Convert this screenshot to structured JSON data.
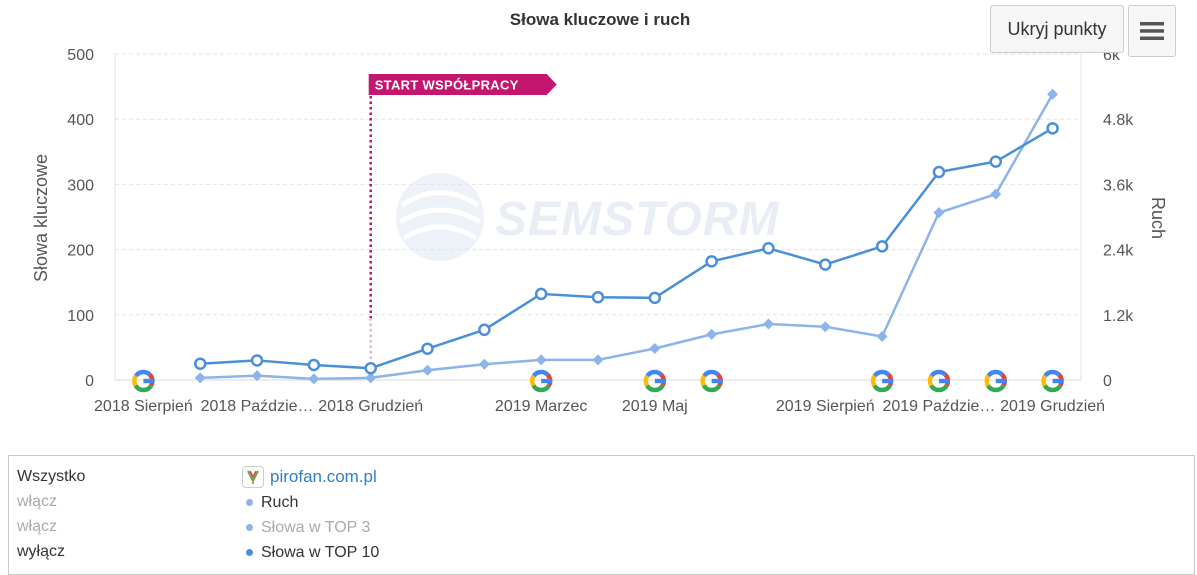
{
  "chart_data": {
    "type": "line",
    "title": "Słowa kluczowe i ruch",
    "ylabel_left": "Słowa kluczowe",
    "ylabel_right": "Ruch",
    "ylim_left": [
      0,
      500
    ],
    "ylim_right": [
      0,
      6000
    ],
    "yticks_left": [
      "0",
      "100",
      "200",
      "300",
      "400",
      "500"
    ],
    "yticks_right": [
      "0",
      "1.2k",
      "2.4k",
      "3.6k",
      "4.8k",
      "6k"
    ],
    "x_labels": [
      {
        "label": "2018 Sierpień",
        "index": 0
      },
      {
        "label": "2018 Paździe…",
        "index": 2
      },
      {
        "label": "2018 Grudzień",
        "index": 4
      },
      {
        "label": "2019 Marzec",
        "index": 7
      },
      {
        "label": "2019 Maj",
        "index": 9
      },
      {
        "label": "2019 Sierpień",
        "index": 12
      },
      {
        "label": "2019 Paździe…",
        "index": 14
      },
      {
        "label": "2019 Grudzień",
        "index": 16
      }
    ],
    "num_points": 17,
    "series": [
      {
        "name": "Słowa w TOP 10",
        "axis": "left",
        "color": "#4a8fd8",
        "marker": "circle",
        "values": [
          null,
          25,
          30,
          23,
          18,
          48,
          77,
          132,
          127,
          126,
          182,
          202,
          177,
          205,
          319,
          335,
          386
        ]
      },
      {
        "name": "Ruch",
        "axis": "right",
        "color": "#8cb4ea",
        "marker": "diamond",
        "values": [
          null,
          40,
          80,
          20,
          40,
          180,
          290,
          370,
          370,
          580,
          840,
          1030,
          980,
          800,
          3080,
          3420,
          5260
        ]
      }
    ],
    "google_update_markers": [
      0,
      7,
      9,
      10,
      13,
      14,
      15,
      16
    ],
    "annotation": {
      "label": "START WSPÓŁPRACY",
      "index": 4
    },
    "watermark": "SEMSTORM",
    "grid": true
  },
  "toolbar": {
    "hide_points_label": "Ukryj punkty",
    "menu_icon": "hamburger-icon"
  },
  "legend": {
    "all_label": "Wszystko",
    "on_label_1": "włącz",
    "on_label_2": "włącz",
    "off_label": "wyłącz",
    "site": "pirofan.com.pl",
    "series": [
      {
        "label": "Ruch",
        "color": "#8cb4ea",
        "state": "on"
      },
      {
        "label": "Słowa w TOP 3",
        "color": "#8cb4ea",
        "state": "off"
      },
      {
        "label": "Słowa w TOP 10",
        "color": "#4a8fd8",
        "state": "on"
      }
    ]
  }
}
